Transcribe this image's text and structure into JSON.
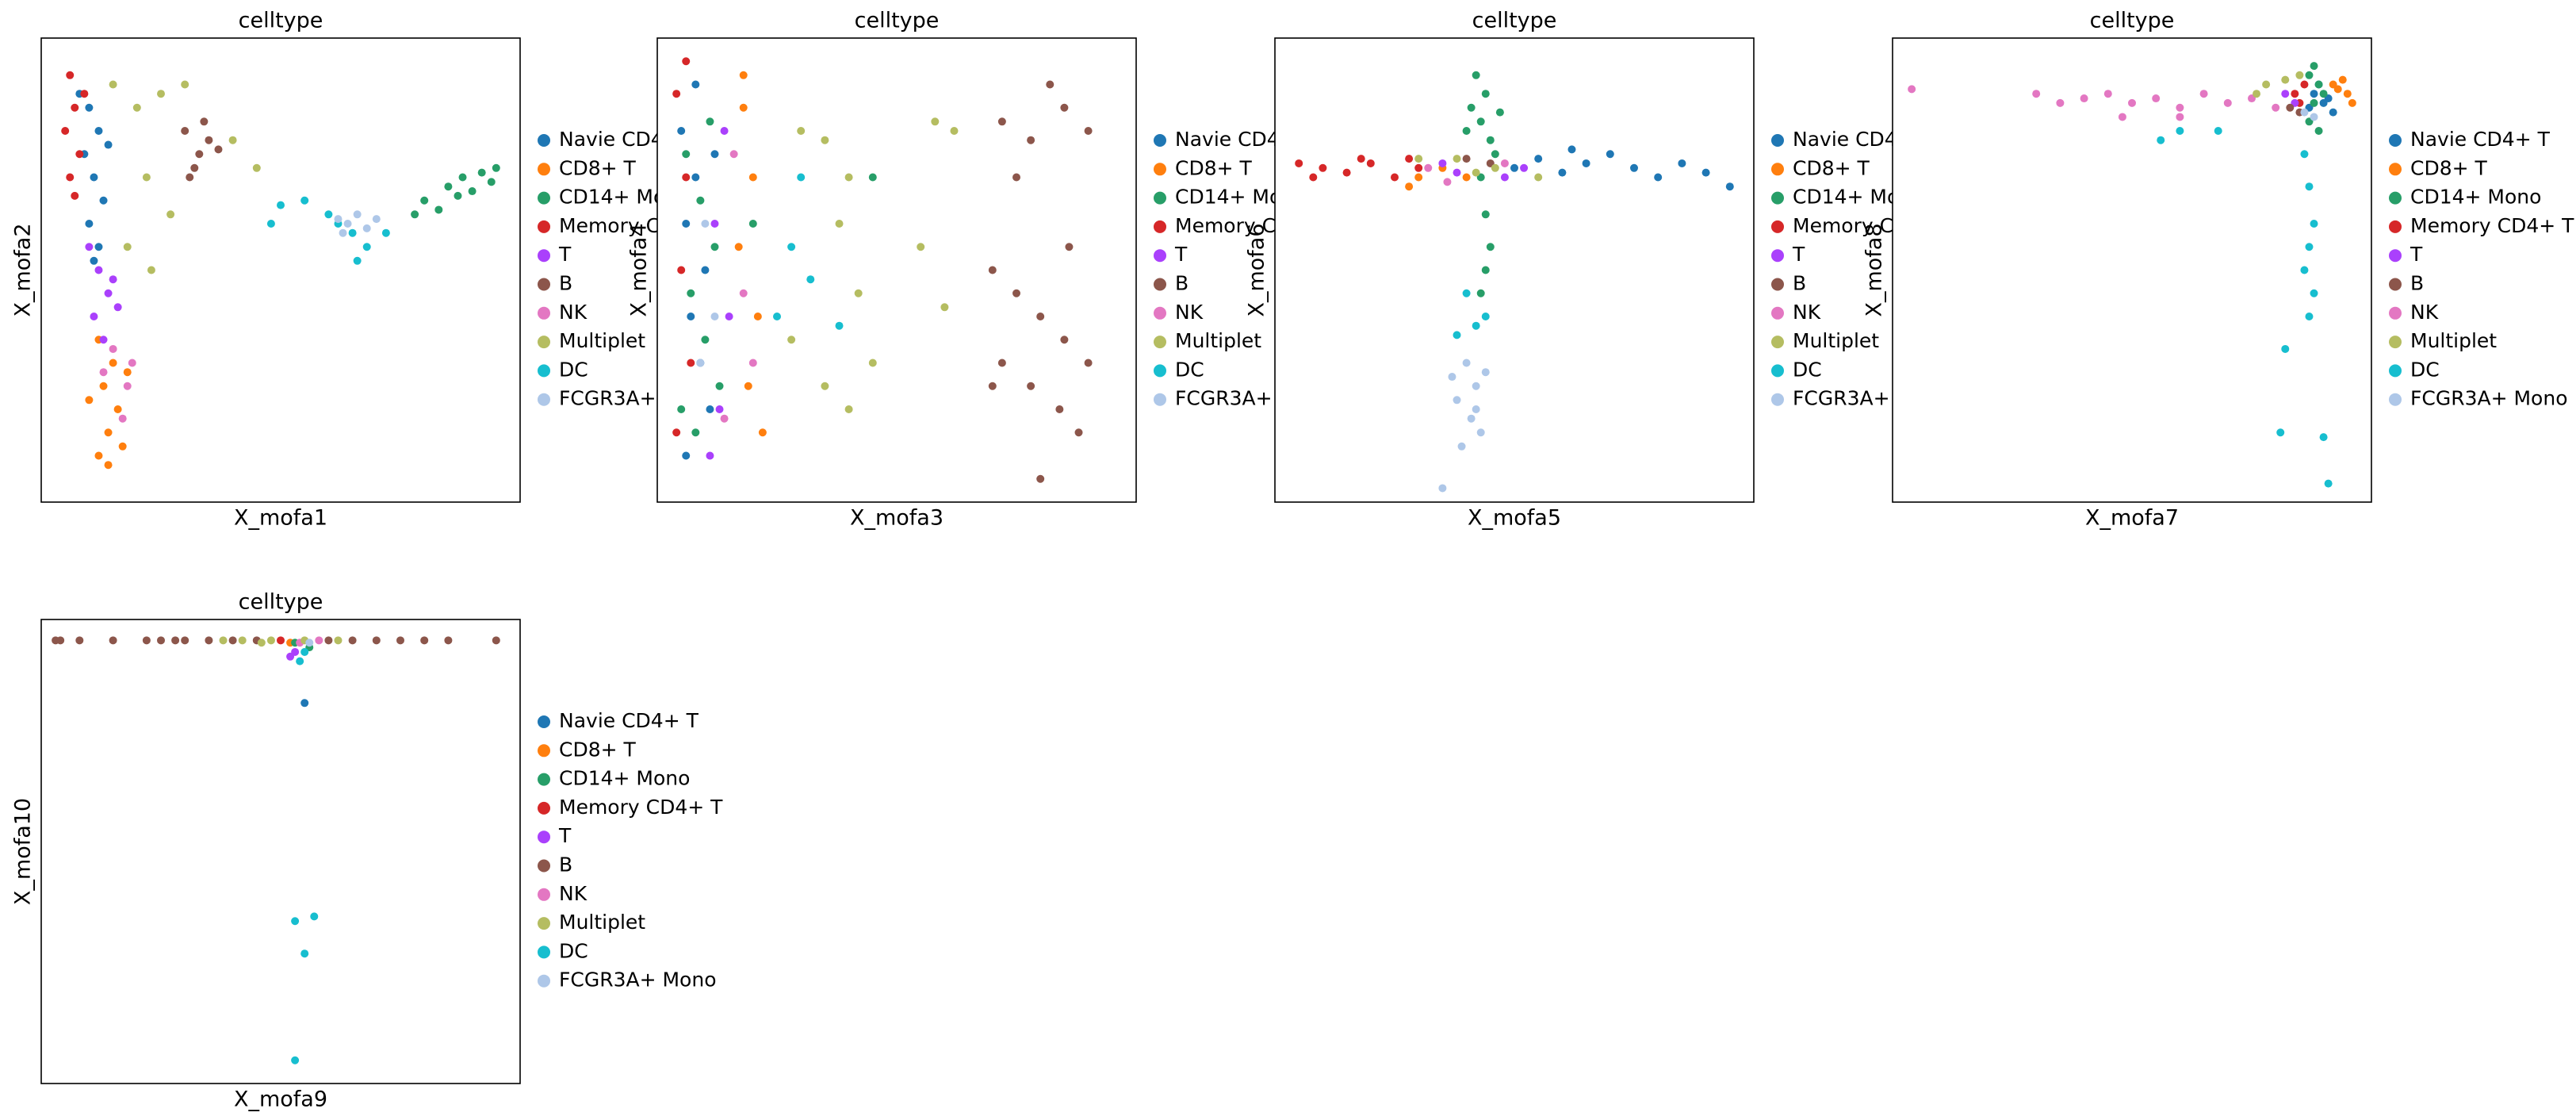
{
  "chart_data": [
    {
      "type": "scatter",
      "title": "celltype",
      "x_label": "X_mofa1",
      "y_label": "X_mofa2",
      "xlim": [
        0,
        100
      ],
      "ylim": [
        0,
        100
      ],
      "series": [
        {
          "name": "Navie CD4+ T",
          "color": "#1f77b4",
          "x": [
            10,
            12,
            9,
            11,
            13,
            10,
            12,
            14,
            8,
            11
          ],
          "y": [
            85,
            80,
            75,
            70,
            65,
            60,
            55,
            77,
            88,
            52
          ]
        },
        {
          "name": "CD8+ T",
          "color": "#ff7f0e",
          "x": [
            12,
            15,
            13,
            16,
            14,
            12,
            17,
            10,
            18,
            14
          ],
          "y": [
            35,
            30,
            25,
            20,
            15,
            10,
            12,
            22,
            28,
            8
          ]
        },
        {
          "name": "CD14+ Mono",
          "color": "#279e68",
          "x": [
            80,
            85,
            88,
            92,
            95,
            83,
            90,
            78,
            87,
            94
          ],
          "y": [
            65,
            68,
            70,
            71,
            72,
            63,
            67,
            62,
            66,
            69
          ]
        },
        {
          "name": "Memory CD4+ T",
          "color": "#d62728",
          "x": [
            6,
            7,
            5,
            8,
            6,
            9,
            7
          ],
          "y": [
            92,
            85,
            80,
            75,
            70,
            88,
            66
          ]
        },
        {
          "name": "T",
          "color": "#aa40fc",
          "x": [
            10,
            12,
            14,
            11,
            13,
            15,
            16
          ],
          "y": [
            55,
            50,
            45,
            40,
            35,
            48,
            42
          ]
        },
        {
          "name": "B",
          "color": "#8c564b",
          "x": [
            30,
            33,
            35,
            32,
            37,
            31,
            34
          ],
          "y": [
            80,
            75,
            78,
            72,
            76,
            70,
            82
          ]
        },
        {
          "name": "NK",
          "color": "#e377c2",
          "x": [
            15,
            18,
            17,
            19,
            13
          ],
          "y": [
            33,
            25,
            18,
            30,
            28
          ]
        },
        {
          "name": "Multiplet",
          "color": "#b5bd61",
          "x": [
            15,
            20,
            25,
            22,
            27,
            18,
            40,
            45,
            23,
            30
          ],
          "y": [
            90,
            85,
            88,
            70,
            62,
            55,
            78,
            72,
            50,
            90
          ]
        },
        {
          "name": "DC",
          "color": "#17becf",
          "x": [
            55,
            60,
            62,
            65,
            68,
            50,
            72,
            48,
            66
          ],
          "y": [
            65,
            62,
            60,
            58,
            55,
            64,
            58,
            60,
            52
          ]
        },
        {
          "name": "FCGR3A+ Mono",
          "color": "#aec7e8",
          "x": [
            62,
            64,
            66,
            68,
            63,
            70
          ],
          "y": [
            61,
            60,
            62,
            59,
            58,
            61
          ]
        }
      ]
    },
    {
      "type": "scatter",
      "title": "celltype",
      "x_label": "X_mofa3",
      "y_label": "X_mofa4",
      "xlim": [
        0,
        100
      ],
      "ylim": [
        0,
        100
      ],
      "series": [
        {
          "name": "Navie CD4+ T",
          "color": "#1f77b4",
          "x": [
            5,
            8,
            6,
            10,
            7,
            9,
            11,
            6,
            8,
            12
          ],
          "y": [
            80,
            70,
            60,
            50,
            40,
            30,
            20,
            10,
            90,
            75
          ]
        },
        {
          "name": "CD8+ T",
          "color": "#ff7f0e",
          "x": [
            18,
            20,
            17,
            21,
            19,
            22,
            18
          ],
          "y": [
            85,
            70,
            55,
            40,
            25,
            15,
            92
          ]
        },
        {
          "name": "CD14+ Mono",
          "color": "#279e68",
          "x": [
            6,
            9,
            12,
            7,
            10,
            13,
            8,
            5,
            11,
            45,
            20
          ],
          "y": [
            75,
            65,
            55,
            45,
            35,
            25,
            15,
            20,
            82,
            70,
            60
          ]
        },
        {
          "name": "Memory CD4+ T",
          "color": "#d62728",
          "x": [
            4,
            6,
            5,
            7,
            4,
            6
          ],
          "y": [
            88,
            70,
            50,
            30,
            15,
            95
          ]
        },
        {
          "name": "T",
          "color": "#aa40fc",
          "x": [
            14,
            12,
            15,
            13,
            11
          ],
          "y": [
            80,
            60,
            40,
            20,
            10
          ]
        },
        {
          "name": "B",
          "color": "#8c564b",
          "x": [
            72,
            78,
            85,
            90,
            75,
            82,
            70,
            75,
            80,
            85,
            90,
            72,
            78,
            84,
            88,
            80,
            70,
            86
          ],
          "y": [
            82,
            78,
            85,
            80,
            70,
            90,
            50,
            45,
            40,
            35,
            30,
            30,
            25,
            20,
            15,
            5,
            25,
            55
          ]
        },
        {
          "name": "NK",
          "color": "#e377c2",
          "x": [
            16,
            18,
            20,
            14
          ],
          "y": [
            75,
            45,
            30,
            18
          ]
        },
        {
          "name": "Multiplet",
          "color": "#b5bd61",
          "x": [
            30,
            35,
            40,
            38,
            55,
            60,
            45,
            35,
            28,
            42,
            58,
            62,
            40
          ],
          "y": [
            80,
            78,
            70,
            60,
            55,
            42,
            30,
            25,
            35,
            45,
            82,
            80,
            20
          ]
        },
        {
          "name": "DC",
          "color": "#17becf",
          "x": [
            28,
            32,
            25,
            30,
            38
          ],
          "y": [
            55,
            48,
            40,
            70,
            38
          ]
        },
        {
          "name": "FCGR3A+ Mono",
          "color": "#aec7e8",
          "x": [
            10,
            12,
            9
          ],
          "y": [
            60,
            40,
            30
          ]
        }
      ]
    },
    {
      "type": "scatter",
      "title": "celltype",
      "x_label": "X_mofa5",
      "y_label": "X_mofa6",
      "xlim": [
        0,
        100
      ],
      "ylim": [
        0,
        100
      ],
      "series": [
        {
          "name": "Navie CD4+ T",
          "color": "#1f77b4",
          "x": [
            50,
            55,
            60,
            65,
            70,
            75,
            80,
            85,
            90,
            95,
            62
          ],
          "y": [
            72,
            74,
            71,
            73,
            75,
            72,
            70,
            73,
            71,
            68,
            76
          ]
        },
        {
          "name": "CD8+ T",
          "color": "#ff7f0e",
          "x": [
            30,
            35,
            28,
            40
          ],
          "y": [
            70,
            72,
            68,
            70
          ]
        },
        {
          "name": "CD14+ Mono",
          "color": "#279e68",
          "x": [
            42,
            44,
            43,
            45,
            41,
            46,
            43,
            44,
            45,
            44,
            43,
            40,
            47
          ],
          "y": [
            92,
            88,
            82,
            78,
            85,
            75,
            70,
            62,
            55,
            50,
            45,
            80,
            84
          ]
        },
        {
          "name": "Memory CD4+ T",
          "color": "#d62728",
          "x": [
            5,
            10,
            15,
            20,
            25,
            30,
            8,
            18,
            28
          ],
          "y": [
            73,
            72,
            71,
            73,
            70,
            72,
            70,
            74,
            74
          ]
        },
        {
          "name": "T",
          "color": "#aa40fc",
          "x": [
            35,
            38,
            48,
            52
          ],
          "y": [
            73,
            71,
            70,
            72
          ]
        },
        {
          "name": "B",
          "color": "#8c564b",
          "x": [
            40,
            45
          ],
          "y": [
            74,
            73
          ]
        },
        {
          "name": "NK",
          "color": "#e377c2",
          "x": [
            32,
            48,
            36
          ],
          "y": [
            72,
            73,
            69
          ]
        },
        {
          "name": "Multiplet",
          "color": "#b5bd61",
          "x": [
            30,
            38,
            42,
            55,
            46
          ],
          "y": [
            74,
            74,
            71,
            70,
            72
          ]
        },
        {
          "name": "DC",
          "color": "#17becf",
          "x": [
            40,
            42,
            44,
            38
          ],
          "y": [
            45,
            38,
            40,
            36
          ]
        },
        {
          "name": "FCGR3A+ Mono",
          "color": "#aec7e8",
          "x": [
            40,
            42,
            38,
            41,
            43,
            39,
            44,
            37,
            42,
            35
          ],
          "y": [
            30,
            25,
            22,
            18,
            15,
            12,
            28,
            27,
            20,
            3
          ]
        }
      ]
    },
    {
      "type": "scatter",
      "title": "celltype",
      "x_label": "X_mofa7",
      "y_label": "X_mofa8",
      "xlim": [
        0,
        100
      ],
      "ylim": [
        0,
        100
      ],
      "series": [
        {
          "name": "Navie CD4+ T",
          "color": "#1f77b4",
          "x": [
            88,
            90,
            92,
            89,
            91,
            87
          ],
          "y": [
            88,
            86,
            84,
            90,
            87,
            85
          ]
        },
        {
          "name": "CD8+ T",
          "color": "#ff7f0e",
          "x": [
            93,
            95,
            96,
            94,
            92
          ],
          "y": [
            89,
            88,
            86,
            91,
            90
          ]
        },
        {
          "name": "CD14+ Mono",
          "color": "#279e68",
          "x": [
            87,
            88,
            89,
            88,
            90,
            87,
            89
          ],
          "y": [
            92,
            94,
            90,
            86,
            88,
            82,
            80
          ]
        },
        {
          "name": "Memory CD4+ T",
          "color": "#d62728",
          "x": [
            84,
            86,
            85
          ],
          "y": [
            88,
            90,
            86
          ]
        },
        {
          "name": "T",
          "color": "#aa40fc",
          "x": [
            82,
            84
          ],
          "y": [
            88,
            86
          ]
        },
        {
          "name": "B",
          "color": "#8c564b",
          "x": [
            83,
            85
          ],
          "y": [
            85,
            84
          ]
        },
        {
          "name": "NK",
          "color": "#e377c2",
          "x": [
            40,
            45,
            50,
            55,
            60,
            65,
            70,
            75,
            80,
            35,
            48,
            60,
            4,
            30
          ],
          "y": [
            87,
            88,
            86,
            87,
            85,
            88,
            86,
            87,
            85,
            86,
            83,
            83,
            89,
            88
          ]
        },
        {
          "name": "Multiplet",
          "color": "#b5bd61",
          "x": [
            78,
            82,
            76,
            85
          ],
          "y": [
            90,
            91,
            88,
            92
          ]
        },
        {
          "name": "DC",
          "color": "#17becf",
          "x": [
            86,
            87,
            88,
            87,
            86,
            88,
            87,
            82,
            81,
            90,
            91,
            56,
            60,
            68
          ],
          "y": [
            75,
            68,
            60,
            55,
            50,
            45,
            40,
            33,
            15,
            14,
            4,
            78,
            80,
            80
          ]
        },
        {
          "name": "FCGR3A+ Mono",
          "color": "#aec7e8",
          "x": [
            86,
            88
          ],
          "y": [
            84,
            83
          ]
        }
      ]
    },
    {
      "type": "scatter",
      "title": "celltype",
      "x_label": "X_mofa9",
      "y_label": "X_mofa10",
      "xlim": [
        0,
        100
      ],
      "ylim": [
        0,
        100
      ],
      "series": [
        {
          "name": "Navie CD4+ T",
          "color": "#1f77b4",
          "x": [
            55
          ],
          "y": [
            82
          ]
        },
        {
          "name": "CD8+ T",
          "color": "#ff7f0e",
          "x": [
            52
          ],
          "y": [
            95
          ]
        },
        {
          "name": "CD14+ Mono",
          "color": "#279e68",
          "x": [
            56,
            53
          ],
          "y": [
            94,
            95
          ]
        },
        {
          "name": "Memory CD4+ T",
          "color": "#d62728",
          "x": [
            50
          ],
          "y": [
            95.5
          ]
        },
        {
          "name": "T",
          "color": "#aa40fc",
          "x": [
            53,
            52
          ],
          "y": [
            93,
            92
          ]
        },
        {
          "name": "B",
          "color": "#8c564b",
          "x": [
            4,
            8,
            15,
            22,
            25,
            30,
            35,
            40,
            45,
            60,
            65,
            70,
            75,
            80,
            85,
            95,
            3,
            28
          ],
          "y": [
            95.5,
            95.5,
            95.5,
            95.5,
            95.5,
            95.5,
            95.5,
            95.5,
            95.5,
            95.5,
            95.5,
            95.5,
            95.5,
            95.5,
            95.5,
            95.5,
            95.5,
            95.5
          ]
        },
        {
          "name": "NK",
          "color": "#e377c2",
          "x": [
            54,
            58
          ],
          "y": [
            95,
            95.5
          ]
        },
        {
          "name": "Multiplet",
          "color": "#b5bd61",
          "x": [
            42,
            48,
            55,
            62,
            46,
            38
          ],
          "y": [
            95.5,
            95.5,
            95.5,
            95.5,
            95,
            95.5
          ]
        },
        {
          "name": "DC",
          "color": "#17becf",
          "x": [
            55,
            54,
            53,
            57,
            55,
            53
          ],
          "y": [
            93,
            91,
            35,
            36,
            28,
            5
          ]
        },
        {
          "name": "FCGR3A+ Mono",
          "color": "#aec7e8",
          "x": [
            56
          ],
          "y": [
            95
          ]
        }
      ]
    }
  ]
}
